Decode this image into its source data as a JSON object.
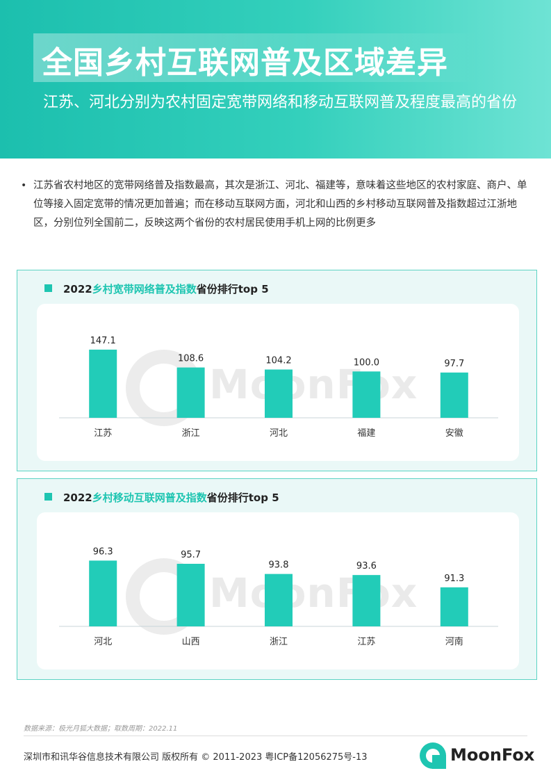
{
  "header": {
    "title": "全国乡村互联网普及区域差异",
    "subtitle": "江苏、河北分别为农村固定宽带网络和移动互联网普及程度最高的省份"
  },
  "summary": {
    "bullet": "•",
    "text": "江苏省农村地区的宽带网络普及指数最高，其次是浙江、河北、福建等，意味着这些地区的农村家庭、商户、单位等接入固定宽带的情况更加普遍；而在移动互联网方面，河北和山西的乡村移动互联网普及指数超过江浙地区，分别位列全国前二，反映这两个省份的农村居民使用手机上网的比例更多"
  },
  "watermark": "MoonFox",
  "colors": {
    "accent": "#1ec5b1",
    "bar": "#22ccb8",
    "panel_border": "#5cd3c3"
  },
  "chart_data": [
    {
      "type": "bar",
      "title_year": "2022",
      "title_highlight": "乡村宽带网络普及指数",
      "title_tail": "省份排行top 5",
      "categories": [
        "江苏",
        "浙江",
        "河北",
        "福建",
        "安徽"
      ],
      "values": [
        147.1,
        108.6,
        104.2,
        100.0,
        97.7
      ],
      "value_labels": [
        "147.1",
        "108.6",
        "104.2",
        "100.0",
        "97.7"
      ],
      "ylim": [
        0,
        150
      ]
    },
    {
      "type": "bar",
      "title_year": "2022",
      "title_highlight": "乡村移动互联网普及指数",
      "title_tail": "省份排行top 5",
      "categories": [
        "河北",
        "山西",
        "浙江",
        "江苏",
        "河南"
      ],
      "values": [
        96.3,
        95.7,
        93.8,
        93.6,
        91.3
      ],
      "value_labels": [
        "96.3",
        "95.7",
        "93.8",
        "93.6",
        "91.3"
      ],
      "ylim": [
        84,
        97
      ]
    }
  ],
  "footer": {
    "source": "数据来源：极光月狐大数据；取数周期：2022.11",
    "copyright": "深圳市和讯华谷信息技术有限公司 版权所有 © 2011-2023 粤ICP备12056275号-13",
    "logo_text": "MoonFox"
  }
}
